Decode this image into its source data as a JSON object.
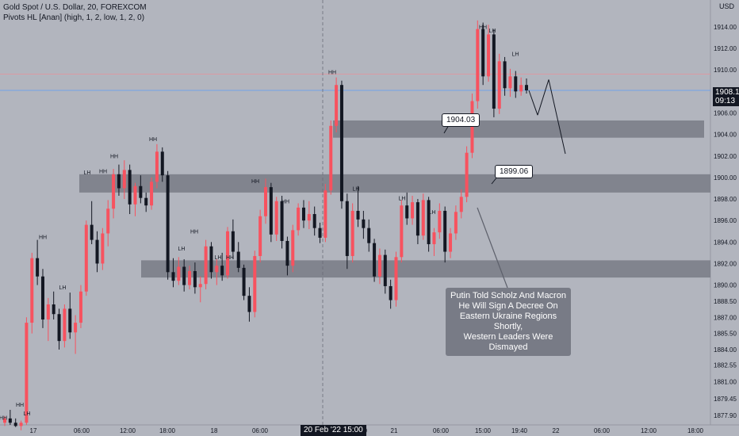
{
  "header": {
    "symbol": "Gold Spot / U.S. Dollar, 20, FOREXCOM",
    "indicator": "Pivots HL [Anan] (high, 1, 2, low, 1, 2, 0)"
  },
  "price_axis": {
    "currency": "USD",
    "last_price": "1908.10",
    "countdown": "09:13"
  },
  "time_axis": {
    "highlighted": "20 Feb '22  15:00"
  },
  "callouts": {
    "level_1": "1904.03",
    "level_2": "1899.06"
  },
  "news_note": {
    "lines": [
      "Putin Told Scholz And Macron",
      "He Will Sign A Decree On",
      "Eastern Ukraine Regions Shortly,",
      "Western Leaders Were Dismayed"
    ]
  },
  "colors": {
    "background": "#b2b5be",
    "bull": "#f7525f",
    "bear": "#131722",
    "zone": "#787b86",
    "note": "#787b86"
  },
  "chart_data": {
    "type": "candlestick",
    "ylim": [
      1877,
      1916.5
    ],
    "y_ticks": [
      1877.9,
      1879.45,
      1881.0,
      1882.55,
      1884.0,
      1885.5,
      1887.0,
      1888.5,
      1890.0,
      1892.0,
      1894.0,
      1896.0,
      1898.0,
      1900.0,
      1902.0,
      1904.0,
      1906.0,
      1908.0,
      1910.0,
      1912.0,
      1914.0
    ],
    "x_ticks": [
      "17",
      "06:00",
      "12:00",
      "18:00",
      "18",
      "06:00",
      "19:40",
      "21",
      "06:00",
      "15:00",
      "19:40",
      "22",
      "06:00",
      "12:00",
      "18:00"
    ],
    "zones": [
      {
        "low": 1903.7,
        "high": 1905.3
      },
      {
        "low": 1898.6,
        "high": 1900.3
      },
      {
        "low": 1890.7,
        "high": 1892.3
      }
    ],
    "horizontal_lines": [
      1909.6,
      1908.1
    ],
    "pivot_labels": [
      {
        "text": "HH",
        "price": 1913.5,
        "kind": "high"
      },
      {
        "text": "LH",
        "price": 1913.2,
        "kind": "high"
      },
      {
        "text": "HH",
        "price": 1909.3,
        "kind": "high"
      },
      {
        "text": "LH",
        "price": 1911.0,
        "kind": "high"
      },
      {
        "text": "HH",
        "price": 1903.1,
        "kind": "high"
      },
      {
        "text": "HH",
        "price": 1901.5,
        "kind": "high"
      },
      {
        "text": "HH",
        "price": 1900.1,
        "kind": "high"
      },
      {
        "text": "LH",
        "price": 1900.0,
        "kind": "high"
      },
      {
        "text": "HH",
        "price": 1899.2,
        "kind": "high"
      },
      {
        "text": "LH",
        "price": 1898.5,
        "kind": "high"
      },
      {
        "text": "LH",
        "price": 1897.6,
        "kind": "high"
      },
      {
        "text": "HH",
        "price": 1897.3,
        "kind": "high"
      },
      {
        "text": "LH",
        "price": 1896.3,
        "kind": "high"
      },
      {
        "text": "HH",
        "price": 1894.5,
        "kind": "high"
      },
      {
        "text": "LH",
        "price": 1892.9,
        "kind": "high"
      },
      {
        "text": "LH",
        "price": 1892.1,
        "kind": "high"
      },
      {
        "text": "HH",
        "price": 1892.1,
        "kind": "high"
      },
      {
        "text": "HH",
        "price": 1894.0,
        "kind": "high"
      },
      {
        "text": "LH",
        "price": 1889.3,
        "kind": "high"
      },
      {
        "text": "HH",
        "price": 1878.4,
        "kind": "high"
      },
      {
        "text": "LH",
        "price": 1877.6,
        "kind": "high"
      },
      {
        "text": "HH",
        "price": 1877.2,
        "kind": "high"
      }
    ],
    "candles": [
      [
        1877.2,
        1877.8,
        1876.9,
        1877.6
      ],
      [
        1877.6,
        1878.4,
        1877.0,
        1877.2
      ],
      [
        1877.2,
        1877.6,
        1876.8,
        1876.9
      ],
      [
        1876.9,
        1877.4,
        1876.5,
        1877.2
      ],
      [
        1877.2,
        1887.0,
        1877.0,
        1886.5
      ],
      [
        1886.5,
        1893.0,
        1885.5,
        1892.5
      ],
      [
        1892.5,
        1894.2,
        1890.0,
        1890.8
      ],
      [
        1890.8,
        1891.5,
        1886.0,
        1886.8
      ],
      [
        1886.8,
        1888.8,
        1884.8,
        1888.2
      ],
      [
        1888.2,
        1889.4,
        1886.8,
        1887.3
      ],
      [
        1887.3,
        1887.8,
        1884.0,
        1884.8
      ],
      [
        1884.8,
        1888.2,
        1884.2,
        1887.8
      ],
      [
        1887.8,
        1889.3,
        1885.0,
        1885.6
      ],
      [
        1885.6,
        1887.2,
        1883.6,
        1886.5
      ],
      [
        1886.5,
        1890.0,
        1886.0,
        1889.4
      ],
      [
        1889.4,
        1896.0,
        1889.0,
        1895.6
      ],
      [
        1895.6,
        1897.8,
        1893.8,
        1894.2
      ],
      [
        1894.2,
        1895.0,
        1891.2,
        1892.0
      ],
      [
        1892.0,
        1895.3,
        1891.4,
        1894.8
      ],
      [
        1894.8,
        1897.9,
        1893.6,
        1897.1
      ],
      [
        1897.1,
        1900.8,
        1896.2,
        1900.3
      ],
      [
        1900.3,
        1901.2,
        1898.3,
        1899.0
      ],
      [
        1899.0,
        1901.6,
        1898.0,
        1900.7
      ],
      [
        1900.7,
        1901.2,
        1896.6,
        1897.5
      ],
      [
        1897.5,
        1899.5,
        1896.4,
        1899.2
      ],
      [
        1899.2,
        1900.2,
        1897.6,
        1898.1
      ],
      [
        1898.1,
        1898.6,
        1896.8,
        1897.4
      ],
      [
        1897.4,
        1900.0,
        1897.0,
        1899.6
      ],
      [
        1899.6,
        1903.1,
        1899.0,
        1902.4
      ],
      [
        1902.4,
        1902.8,
        1899.6,
        1900.2
      ],
      [
        1900.2,
        1900.6,
        1890.5,
        1891.2
      ],
      [
        1891.2,
        1892.5,
        1889.8,
        1890.4
      ],
      [
        1890.4,
        1892.6,
        1890.0,
        1891.7
      ],
      [
        1891.7,
        1892.4,
        1889.4,
        1890.0
      ],
      [
        1890.0,
        1891.8,
        1889.6,
        1891.3
      ],
      [
        1891.3,
        1892.1,
        1889.2,
        1889.8
      ],
      [
        1889.8,
        1890.8,
        1888.4,
        1890.1
      ],
      [
        1890.1,
        1894.2,
        1889.6,
        1893.6
      ],
      [
        1893.6,
        1894.0,
        1890.6,
        1891.2
      ],
      [
        1891.2,
        1892.4,
        1890.0,
        1891.8
      ],
      [
        1891.8,
        1893.0,
        1890.4,
        1890.9
      ],
      [
        1890.9,
        1895.4,
        1890.6,
        1895.0
      ],
      [
        1895.0,
        1896.1,
        1892.4,
        1893.1
      ],
      [
        1893.1,
        1894.0,
        1891.2,
        1891.6
      ],
      [
        1891.6,
        1891.9,
        1888.6,
        1889.0
      ],
      [
        1889.0,
        1889.8,
        1886.6,
        1887.5
      ],
      [
        1887.5,
        1893.2,
        1887.0,
        1892.7
      ],
      [
        1892.7,
        1897.0,
        1892.1,
        1896.4
      ],
      [
        1896.4,
        1899.9,
        1895.7,
        1899.1
      ],
      [
        1899.1,
        1899.5,
        1894.0,
        1894.7
      ],
      [
        1894.7,
        1898.2,
        1894.1,
        1897.8
      ],
      [
        1897.8,
        1898.3,
        1893.4,
        1894.1
      ],
      [
        1894.1,
        1894.5,
        1890.9,
        1891.8
      ],
      [
        1891.8,
        1895.6,
        1891.2,
        1895.1
      ],
      [
        1895.1,
        1897.6,
        1894.6,
        1897.2
      ],
      [
        1897.2,
        1897.9,
        1895.3,
        1896.0
      ],
      [
        1896.0,
        1897.8,
        1895.2,
        1896.6
      ],
      [
        1896.6,
        1897.3,
        1894.6,
        1895.3
      ],
      [
        1895.3,
        1895.8,
        1893.9,
        1894.4
      ],
      [
        1894.4,
        1899.4,
        1894.0,
        1898.8
      ],
      [
        1898.8,
        1905.3,
        1898.4,
        1904.8
      ],
      [
        1904.8,
        1909.3,
        1904.2,
        1908.6
      ],
      [
        1908.6,
        1909.0,
        1897.1,
        1897.8
      ],
      [
        1897.8,
        1898.5,
        1891.5,
        1892.7
      ],
      [
        1892.7,
        1897.6,
        1892.1,
        1896.9
      ],
      [
        1896.9,
        1899.2,
        1895.4,
        1896.1
      ],
      [
        1896.1,
        1896.9,
        1894.3,
        1895.3
      ],
      [
        1895.3,
        1896.1,
        1893.1,
        1893.9
      ],
      [
        1893.9,
        1894.3,
        1890.3,
        1890.8
      ],
      [
        1890.8,
        1893.4,
        1890.1,
        1892.8
      ],
      [
        1892.8,
        1893.3,
        1889.2,
        1889.9
      ],
      [
        1889.9,
        1890.5,
        1887.8,
        1888.6
      ],
      [
        1888.6,
        1893.1,
        1888.0,
        1892.6
      ],
      [
        1892.6,
        1897.9,
        1892.1,
        1897.4
      ],
      [
        1897.4,
        1898.6,
        1895.6,
        1896.2
      ],
      [
        1896.2,
        1898.3,
        1895.6,
        1897.7
      ],
      [
        1897.7,
        1898.0,
        1893.8,
        1894.6
      ],
      [
        1894.6,
        1898.5,
        1894.2,
        1897.9
      ],
      [
        1897.9,
        1898.2,
        1893.1,
        1893.8
      ],
      [
        1893.8,
        1895.3,
        1892.7,
        1894.9
      ],
      [
        1894.9,
        1897.6,
        1894.3,
        1896.9
      ],
      [
        1896.9,
        1897.3,
        1892.1,
        1893.1
      ],
      [
        1893.1,
        1895.3,
        1892.5,
        1894.8
      ],
      [
        1894.8,
        1897.4,
        1894.2,
        1896.8
      ],
      [
        1896.8,
        1898.9,
        1896.2,
        1898.2
      ],
      [
        1898.2,
        1902.9,
        1897.7,
        1902.3
      ],
      [
        1902.3,
        1907.8,
        1901.8,
        1907.1
      ],
      [
        1907.1,
        1914.6,
        1906.4,
        1913.8
      ],
      [
        1913.8,
        1914.4,
        1908.6,
        1909.4
      ],
      [
        1909.4,
        1914.2,
        1908.9,
        1913.3
      ],
      [
        1913.3,
        1913.8,
        1905.6,
        1906.4
      ],
      [
        1906.4,
        1911.5,
        1905.9,
        1910.8
      ],
      [
        1910.8,
        1911.2,
        1907.6,
        1908.3
      ],
      [
        1908.3,
        1910.1,
        1907.5,
        1909.4
      ],
      [
        1909.4,
        1909.9,
        1907.4,
        1908.0
      ],
      [
        1908.0,
        1909.3,
        1907.6,
        1908.6
      ],
      [
        1908.6,
        1909.2,
        1907.8,
        1908.1
      ]
    ],
    "projection": [
      [
        1908.1,
        1905.8
      ],
      [
        1905.8,
        1909.1
      ],
      [
        1909.1,
        1902.2
      ]
    ]
  }
}
